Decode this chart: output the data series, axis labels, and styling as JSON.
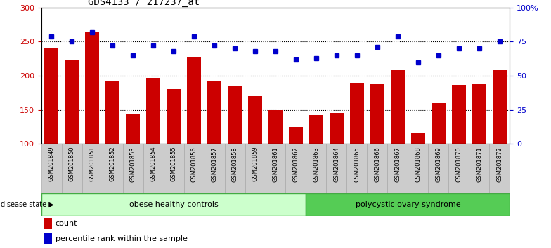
{
  "title": "GDS4133 / 217237_at",
  "samples": [
    "GSM201849",
    "GSM201850",
    "GSM201851",
    "GSM201852",
    "GSM201853",
    "GSM201854",
    "GSM201855",
    "GSM201856",
    "GSM201857",
    "GSM201858",
    "GSM201859",
    "GSM201861",
    "GSM201862",
    "GSM201863",
    "GSM201864",
    "GSM201865",
    "GSM201866",
    "GSM201867",
    "GSM201868",
    "GSM201869",
    "GSM201870",
    "GSM201871",
    "GSM201872"
  ],
  "counts": [
    240,
    224,
    264,
    192,
    143,
    196,
    180,
    228,
    192,
    185,
    170,
    150,
    125,
    142,
    145,
    190,
    188,
    208,
    116,
    160,
    186,
    188,
    208
  ],
  "percentiles": [
    79,
    75,
    82,
    72,
    65,
    72,
    68,
    79,
    72,
    70,
    68,
    68,
    62,
    63,
    65,
    65,
    71,
    79,
    60,
    65,
    70,
    70,
    75
  ],
  "group1_label": "obese healthy controls",
  "group2_label": "polycystic ovary syndrome",
  "group1_count": 13,
  "group2_count": 10,
  "bar_color": "#cc0000",
  "dot_color": "#0000cc",
  "group1_bg": "#ccffcc",
  "group2_bg": "#55cc55",
  "gray_bg": "#cccccc",
  "ylim_left": [
    100,
    300
  ],
  "ylim_right": [
    0,
    100
  ],
  "yticks_left": [
    100,
    150,
    200,
    250,
    300
  ],
  "yticks_right": [
    0,
    25,
    50,
    75,
    100
  ],
  "ylabel_left_color": "#cc0000",
  "ylabel_right_color": "#0000cc",
  "legend_count_label": "count",
  "legend_pct_label": "percentile rank within the sample"
}
